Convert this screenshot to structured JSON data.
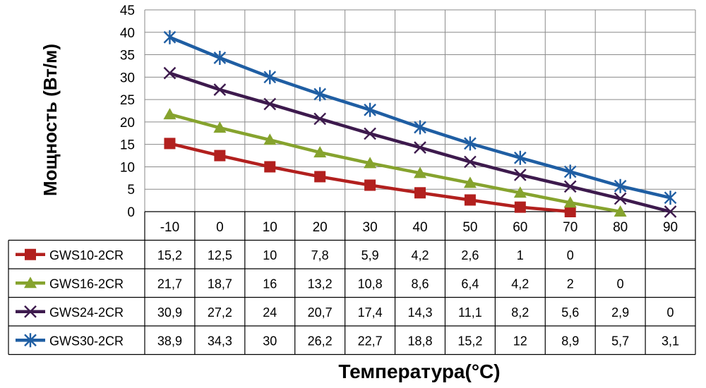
{
  "chart_data": {
    "type": "line",
    "xlabel": "Температура(°C)",
    "ylabel": "Мощность (Вт/м)",
    "ylim": [
      0,
      45
    ],
    "yticks": [
      0,
      5,
      10,
      15,
      20,
      25,
      30,
      35,
      40,
      45
    ],
    "grid": true,
    "legend": "data-table",
    "categories": [
      "-10",
      "0",
      "10",
      "20",
      "30",
      "40",
      "50",
      "60",
      "70",
      "80",
      "90"
    ],
    "series": [
      {
        "name": "GWS10-2CR",
        "color": "#b2201e",
        "marker": "square",
        "values": [
          15.2,
          12.5,
          10,
          7.8,
          5.9,
          4.2,
          2.6,
          1,
          0,
          null,
          null
        ],
        "labels": [
          "15,2",
          "12,5",
          "10",
          "7,8",
          "5,9",
          "4,2",
          "2,6",
          "1",
          "0",
          "",
          ""
        ]
      },
      {
        "name": "GWS16-2CR",
        "color": "#86a32e",
        "marker": "triangle",
        "values": [
          21.7,
          18.7,
          16,
          13.2,
          10.8,
          8.6,
          6.4,
          4.2,
          2,
          0,
          null
        ],
        "labels": [
          "21,7",
          "18,7",
          "16",
          "13,2",
          "10,8",
          "8,6",
          "6,4",
          "4,2",
          "2",
          "0",
          ""
        ]
      },
      {
        "name": "GWS24-2CR",
        "color": "#3d1a4d",
        "marker": "x",
        "values": [
          30.9,
          27.2,
          24,
          20.7,
          17.4,
          14.3,
          11.1,
          8.2,
          5.6,
          2.9,
          0
        ],
        "labels": [
          "30,9",
          "27,2",
          "24",
          "20,7",
          "17,4",
          "14,3",
          "11,1",
          "8,2",
          "5,6",
          "2,9",
          "0"
        ]
      },
      {
        "name": "GWS30-2CR",
        "color": "#1f5ea3",
        "marker": "star",
        "values": [
          38.9,
          34.3,
          30,
          26.2,
          22.7,
          18.8,
          15.2,
          12,
          8.9,
          5.7,
          3.1
        ],
        "labels": [
          "38,9",
          "34,3",
          "30",
          "26,2",
          "22,7",
          "18,8",
          "15,2",
          "12",
          "8,9",
          "5,7",
          "3,1"
        ]
      }
    ]
  }
}
